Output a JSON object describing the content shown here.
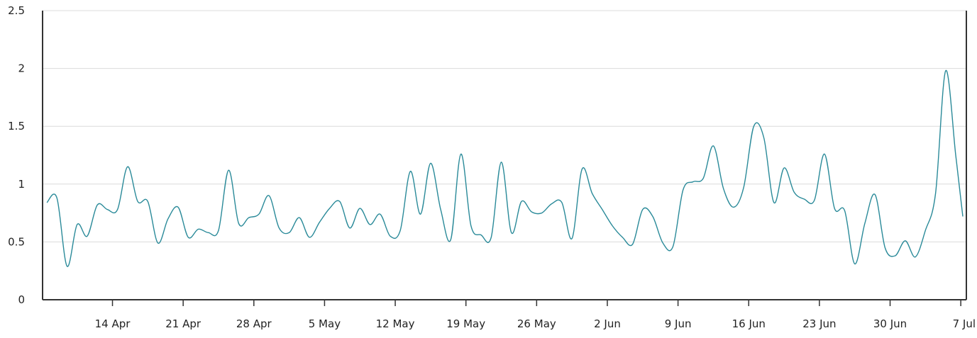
{
  "chart_data": {
    "type": "line",
    "title": "",
    "xlabel": "",
    "ylabel": "",
    "ylim": [
      0,
      2.5
    ],
    "y_ticks": [
      "0",
      "0.5",
      "1",
      "1.5",
      "2",
      "2.5"
    ],
    "y_tick_values": [
      0,
      0.5,
      1,
      1.5,
      2,
      2.5
    ],
    "x_ticks": [
      "14 Apr",
      "21 Apr",
      "28 Apr",
      "5 May",
      "12 May",
      "19 May",
      "26 May",
      "2 Jun",
      "9 Jun",
      "16 Jun",
      "23 Jun",
      "30 Jun",
      "7 Jul"
    ],
    "x_tick_days": [
      14,
      21,
      28,
      35,
      42,
      49,
      56,
      63,
      70,
      77,
      84,
      91,
      98
    ],
    "xlim_days": [
      7.5,
      98.2
    ],
    "grid": true,
    "line_color": "#2a8a99",
    "series": [
      {
        "x_days": [
          7.5,
          8.5,
          9.5,
          10.5,
          11.5,
          12.5,
          13.5,
          14.5,
          15.5,
          16.5,
          17.5,
          18.5,
          19.5,
          20.5,
          21.5,
          22.5,
          23.5,
          24.5,
          25.5,
          26.5,
          27.5,
          28.5,
          29.5,
          30.5,
          31.5,
          32.5,
          33.5,
          34.5,
          35.5,
          36.5,
          37.5,
          38.5,
          39.5,
          40.5,
          41.5,
          42.5,
          43.5,
          44.5,
          45.5,
          46.5,
          47.5,
          48.5,
          49.5,
          50.5,
          51.5,
          52.5,
          53.5,
          54.5,
          55.5,
          56.5,
          57.5,
          58.5,
          59.5,
          60.5,
          61.5,
          62.5,
          63.5,
          64.5,
          65.5,
          66.5,
          67.5,
          68.5,
          69.5,
          70.5,
          71.5,
          72.5,
          73.5,
          74.5,
          75.5,
          76.5,
          77.5,
          78.5,
          79.5,
          80.5,
          81.5,
          82.5,
          83.5,
          84.5,
          85.5,
          86.5,
          87.5,
          88.5,
          89.5,
          90.5,
          91.5,
          92.5,
          93.5,
          94.5,
          95.5,
          96.5,
          97.5,
          98.2
        ],
        "y": [
          0.84,
          0.88,
          0.29,
          0.65,
          0.55,
          0.82,
          0.78,
          0.78,
          1.15,
          0.85,
          0.85,
          0.49,
          0.7,
          0.8,
          0.54,
          0.61,
          0.58,
          0.6,
          1.12,
          0.66,
          0.71,
          0.74,
          0.9,
          0.62,
          0.58,
          0.71,
          0.54,
          0.67,
          0.79,
          0.85,
          0.62,
          0.79,
          0.65,
          0.74,
          0.55,
          0.6,
          1.11,
          0.74,
          1.18,
          0.78,
          0.52,
          1.26,
          0.64,
          0.56,
          0.54,
          1.19,
          0.58,
          0.85,
          0.76,
          0.75,
          0.83,
          0.84,
          0.53,
          1.13,
          0.92,
          0.78,
          0.64,
          0.54,
          0.48,
          0.78,
          0.72,
          0.49,
          0.46,
          0.95,
          1.02,
          1.05,
          1.33,
          0.96,
          0.8,
          0.97,
          1.5,
          1.4,
          0.84,
          1.14,
          0.93,
          0.87,
          0.86,
          1.26,
          0.79,
          0.77,
          0.31,
          0.66,
          0.91,
          0.45,
          0.38,
          0.51,
          0.37,
          0.6,
          0.92,
          1.98,
          1.25,
          0.72
        ]
      }
    ]
  }
}
